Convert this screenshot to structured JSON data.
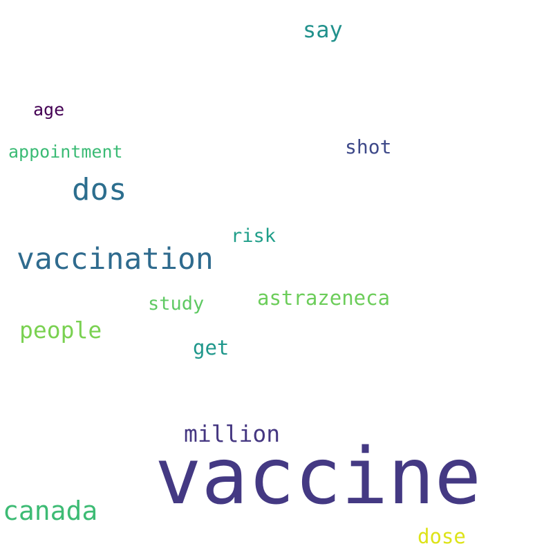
{
  "cloud": {
    "words": {
      "vaccine": {
        "text": "vaccine",
        "color": "#443983"
      },
      "vaccination": {
        "text": "vaccination",
        "color": "#2f6b8e"
      },
      "dos": {
        "text": "dos",
        "color": "#2c6e8e"
      },
      "canada": {
        "text": "canada",
        "color": "#3dbb74"
      },
      "million": {
        "text": "million",
        "color": "#453781"
      },
      "people": {
        "text": "people",
        "color": "#7ad151"
      },
      "say": {
        "text": "say",
        "color": "#21918c"
      },
      "astrazeneca": {
        "text": "astrazeneca",
        "color": "#6ccd5a"
      },
      "get": {
        "text": "get",
        "color": "#1f978b"
      },
      "shot": {
        "text": "shot",
        "color": "#3e4989"
      },
      "dose": {
        "text": "dose",
        "color": "#dde318"
      },
      "study": {
        "text": "study",
        "color": "#5ec962"
      },
      "risk": {
        "text": "risk",
        "color": "#1f9e89"
      },
      "age": {
        "text": "age",
        "color": "#440154"
      },
      "appointment": {
        "text": "appointment",
        "color": "#3bbb75"
      }
    }
  }
}
